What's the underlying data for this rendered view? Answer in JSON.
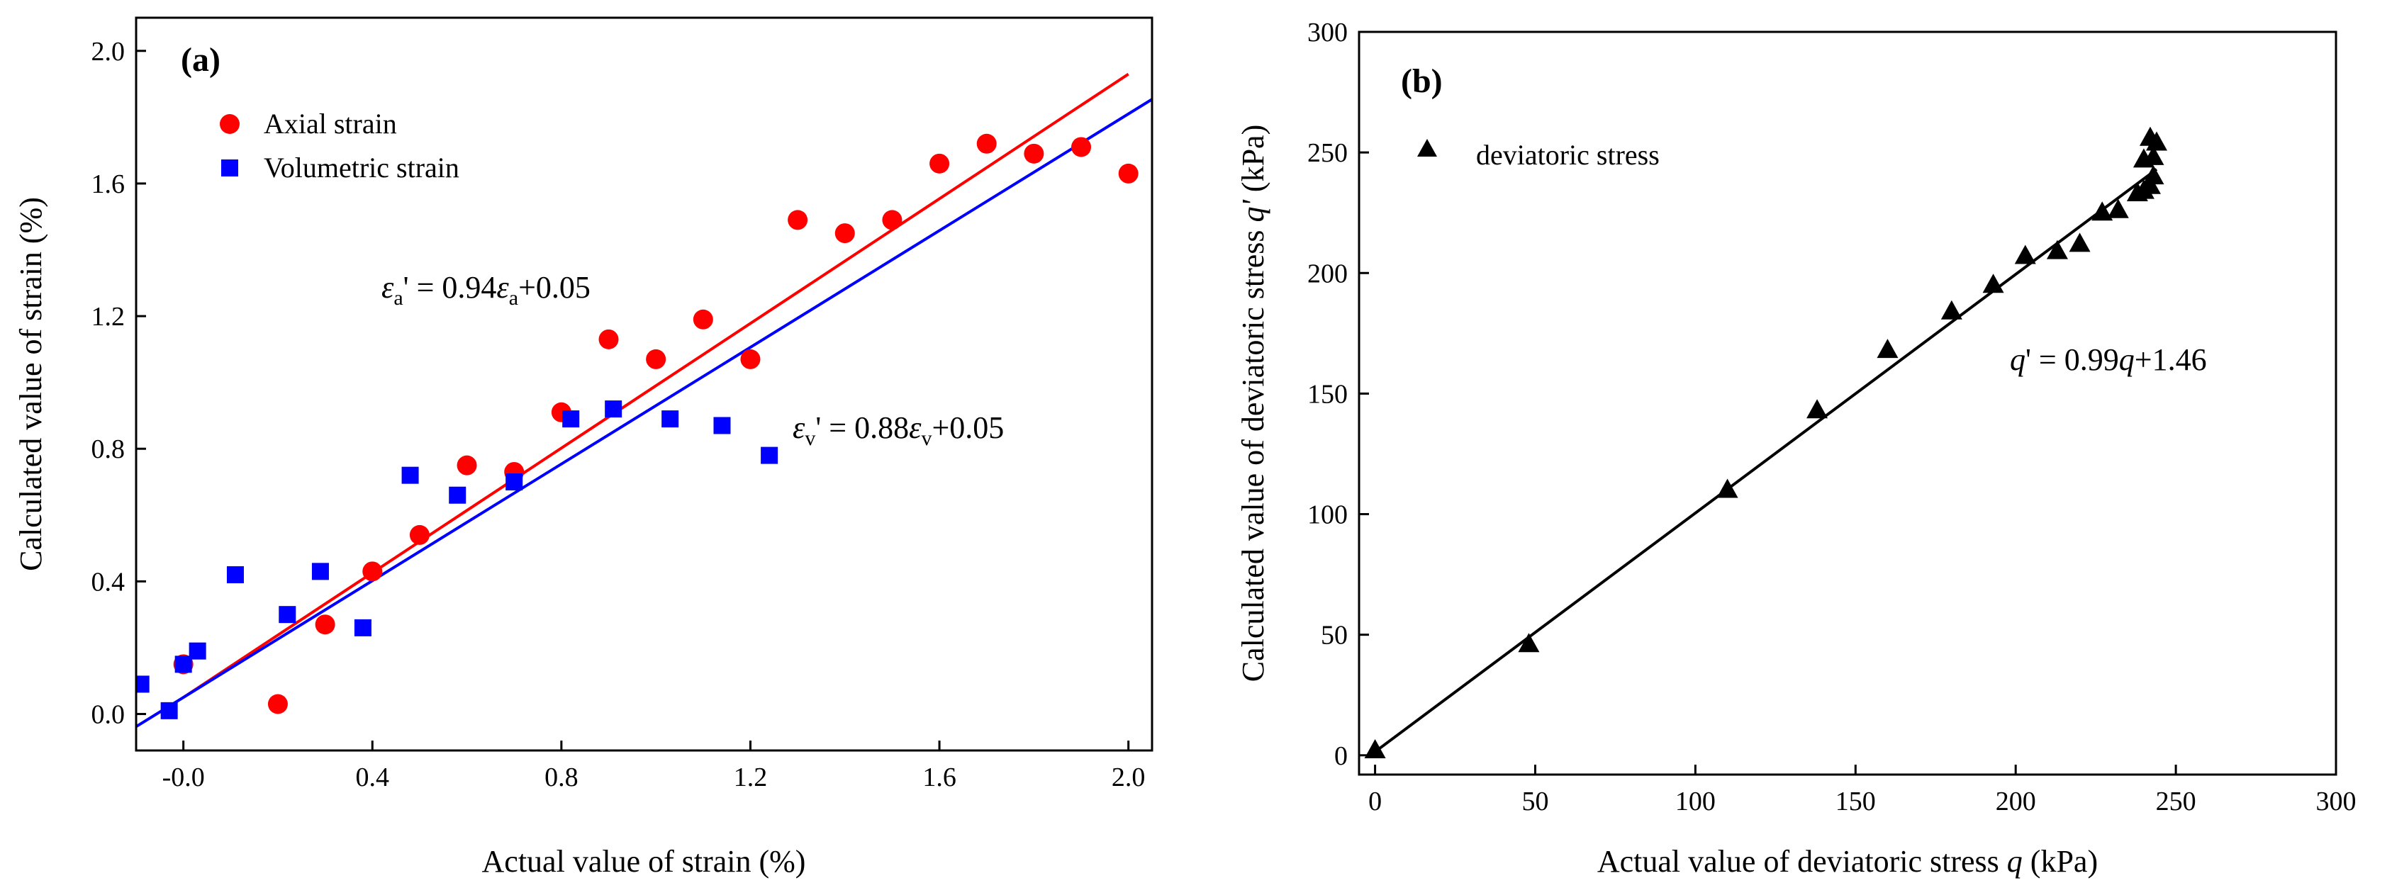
{
  "chart_data": [
    {
      "type": "scatter",
      "panel_label": "(a)",
      "xlabel": "Actual value of strain  (%)",
      "ylabel": "Calculated value of strain (%)",
      "xlim": [
        -0.1,
        2.05
      ],
      "ylim": [
        -0.11,
        2.1
      ],
      "xticks": [
        "-0.0",
        "0.4",
        "0.8",
        "1.2",
        "1.6",
        "2.0"
      ],
      "xtick_values": [
        0.0,
        0.4,
        0.8,
        1.2,
        1.6,
        2.0
      ],
      "yticks": [
        "0.0",
        "0.4",
        "0.8",
        "1.2",
        "1.6",
        "2.0"
      ],
      "ytick_values": [
        0.0,
        0.4,
        0.8,
        1.2,
        1.6,
        2.0
      ],
      "series": [
        {
          "name": "Axial strain",
          "marker": "circle",
          "color": "#ff0000",
          "x": [
            0.0,
            0.2,
            0.3,
            0.4,
            0.5,
            0.6,
            0.7,
            0.8,
            0.9,
            1.0,
            1.1,
            1.2,
            1.3,
            1.4,
            1.5,
            1.6,
            1.7,
            1.8,
            1.9,
            2.0
          ],
          "y": [
            0.15,
            0.03,
            0.27,
            0.43,
            0.54,
            0.75,
            0.73,
            0.91,
            1.13,
            1.07,
            1.19,
            1.07,
            1.49,
            1.45,
            1.49,
            1.66,
            1.72,
            1.69,
            1.71,
            1.63
          ]
        },
        {
          "name": "Volumetric strain",
          "marker": "square",
          "color": "#0000ff",
          "x": [
            -0.09,
            -0.03,
            0.0,
            0.03,
            0.11,
            0.22,
            0.29,
            0.38,
            0.48,
            0.58,
            0.7,
            0.82,
            0.91,
            1.03,
            1.14,
            1.24
          ],
          "y": [
            0.09,
            0.01,
            0.15,
            0.19,
            0.42,
            0.3,
            0.43,
            0.26,
            0.72,
            0.66,
            0.7,
            0.89,
            0.92,
            0.89,
            0.87,
            0.78
          ]
        }
      ],
      "fits": [
        {
          "series": "Axial strain",
          "slope": 0.94,
          "intercept": 0.05,
          "x_range": [
            0.0,
            2.0
          ],
          "color": "#ff0000"
        },
        {
          "series": "Volumetric strain",
          "slope": 0.88,
          "intercept": 0.05,
          "x_range": [
            -0.1,
            2.05
          ],
          "color": "#0000ff"
        }
      ],
      "annotations": {
        "axial": {
          "sym": "ε",
          "sub": "a",
          "rest1": "' = 0.94",
          "rest2": "+0.05"
        },
        "vol": {
          "sym": "ε",
          "sub": "v",
          "rest1": "' = 0.88",
          "rest2": "+0.05"
        }
      }
    },
    {
      "type": "scatter",
      "panel_label": "(b)",
      "xlabel": "Actual value of deviatoric stress q (kPa)",
      "xlabel_parts": {
        "pre": "Actual value of deviatoric stress ",
        "var": "q",
        "post": " (kPa)"
      },
      "ylabel": "Calculated value of deviatoric stress q' (kPa)",
      "ylabel_parts": {
        "pre": "Calculated value of deviatoric stress ",
        "var": "q'",
        "post": " (kPa)"
      },
      "xlim": [
        -5,
        300
      ],
      "ylim": [
        -8,
        300
      ],
      "xticks": [
        "0",
        "50",
        "100",
        "150",
        "200",
        "250",
        "300"
      ],
      "xtick_values": [
        0,
        50,
        100,
        150,
        200,
        250,
        300
      ],
      "yticks": [
        "0",
        "50",
        "100",
        "150",
        "200",
        "250",
        "300"
      ],
      "ytick_values": [
        0,
        50,
        100,
        150,
        200,
        250,
        300
      ],
      "series": [
        {
          "name": "deviatoric stress",
          "marker": "triangle",
          "color": "#000000",
          "x": [
            0,
            48,
            110,
            138,
            160,
            180,
            193,
            203,
            213,
            220,
            227,
            232,
            238,
            240,
            240,
            242,
            242,
            243,
            243,
            244
          ],
          "y": [
            2,
            46,
            110,
            143,
            168,
            184,
            195,
            207,
            209,
            212,
            225,
            226,
            233,
            234,
            247,
            236,
            256,
            240,
            248,
            254
          ]
        }
      ],
      "fits": [
        {
          "series": "deviatoric stress",
          "slope": 0.99,
          "intercept": 1.46,
          "x_range": [
            0,
            244
          ],
          "color": "#000000"
        }
      ],
      "annotations": {
        "fit": {
          "v1": "q",
          "mid": "' = 0.99",
          "v2": "q",
          "post": "+1.46"
        }
      }
    }
  ]
}
